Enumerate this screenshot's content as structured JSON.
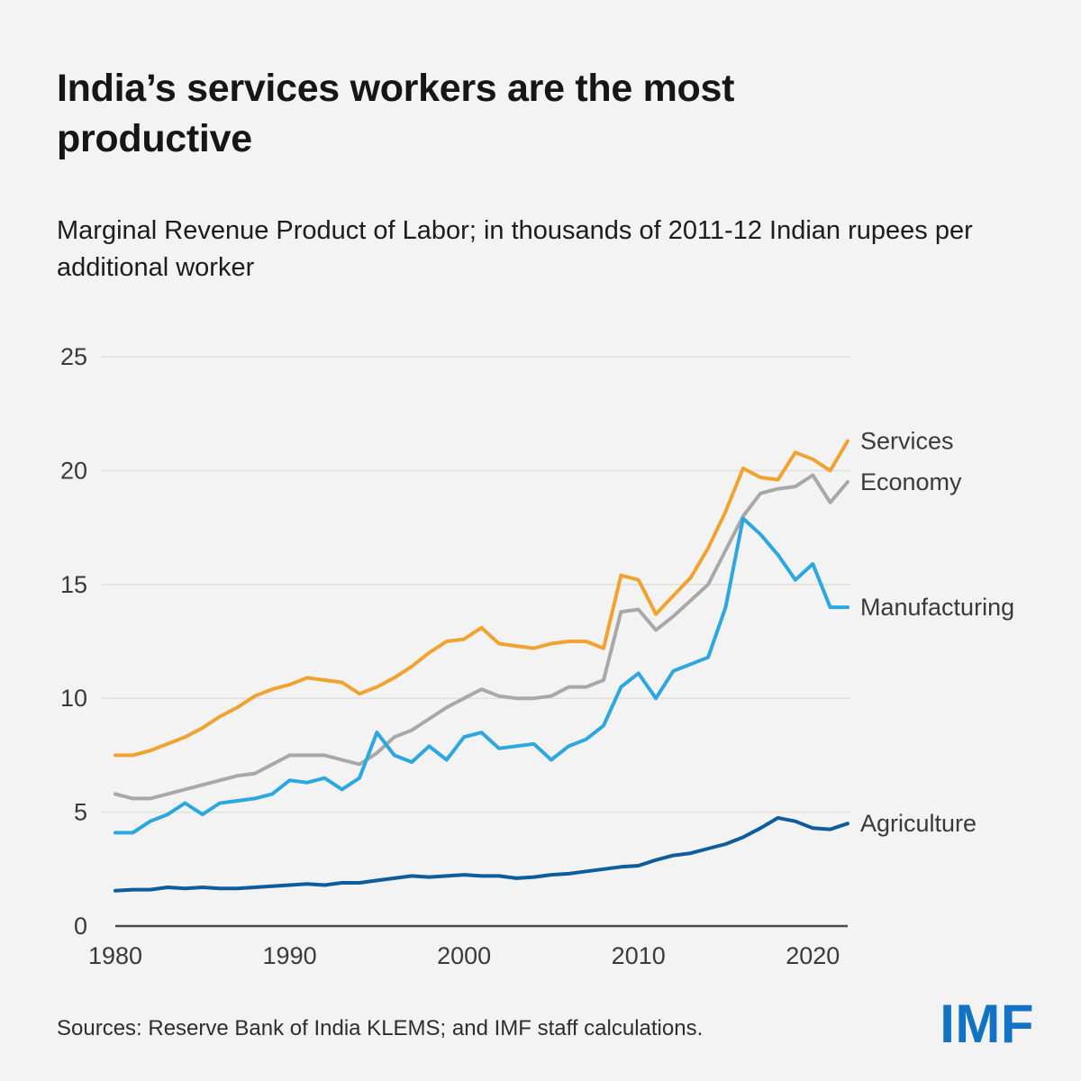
{
  "header": {
    "title": "India’s services workers are the most productive",
    "subtitle": "Marginal Revenue Product of Labor; in thousands of 2011-12 Indian rupees per additional worker"
  },
  "chart_data": {
    "type": "line",
    "title": "India’s services workers are the most productive",
    "subtitle": "Marginal Revenue Product of Labor; in thousands of 2011-12 Indian rupees per additional worker",
    "xlabel": "",
    "ylabel": "",
    "xlim": [
      1980,
      2022
    ],
    "ylim": [
      0,
      25
    ],
    "x_ticks": [
      1980,
      1990,
      2000,
      2010,
      2020
    ],
    "y_ticks": [
      0,
      5,
      10,
      15,
      20,
      25
    ],
    "grid": "horizontal",
    "legend_position": "right-of-line-ends",
    "x": [
      1980,
      1981,
      1982,
      1983,
      1984,
      1985,
      1986,
      1987,
      1988,
      1989,
      1990,
      1991,
      1992,
      1993,
      1994,
      1995,
      1996,
      1997,
      1998,
      1999,
      2000,
      2001,
      2002,
      2003,
      2004,
      2005,
      2006,
      2007,
      2008,
      2009,
      2010,
      2011,
      2012,
      2013,
      2014,
      2015,
      2016,
      2017,
      2018,
      2019,
      2020,
      2021,
      2022
    ],
    "series": [
      {
        "name": "Services",
        "color": "#F0A330",
        "values": [
          7.5,
          7.5,
          7.7,
          8.0,
          8.3,
          8.7,
          9.2,
          9.6,
          10.1,
          10.4,
          10.6,
          10.9,
          10.8,
          10.7,
          10.2,
          10.5,
          10.9,
          11.4,
          12.0,
          12.5,
          12.6,
          13.1,
          12.4,
          12.3,
          12.2,
          12.4,
          12.5,
          12.5,
          12.2,
          15.4,
          15.2,
          13.7,
          14.5,
          15.3,
          16.6,
          18.2,
          20.1,
          19.7,
          19.6,
          20.8,
          20.5,
          20.0,
          21.3
        ]
      },
      {
        "name": "Economy",
        "color": "#A8A8A8",
        "values": [
          5.8,
          5.6,
          5.6,
          5.8,
          6.0,
          6.2,
          6.4,
          6.6,
          6.7,
          7.1,
          7.5,
          7.5,
          7.5,
          7.3,
          7.1,
          7.6,
          8.3,
          8.6,
          9.1,
          9.6,
          10.0,
          10.4,
          10.1,
          10.0,
          10.0,
          10.1,
          10.5,
          10.5,
          10.8,
          13.8,
          13.9,
          13.0,
          13.6,
          14.3,
          15.0,
          16.5,
          18.0,
          19.0,
          19.2,
          19.3,
          19.8,
          18.6,
          19.5
        ]
      },
      {
        "name": "Manufacturing",
        "color": "#2CA7DF",
        "values": [
          4.1,
          4.1,
          4.6,
          4.9,
          5.4,
          4.9,
          5.4,
          5.5,
          5.6,
          5.8,
          6.4,
          6.3,
          6.5,
          6.0,
          6.5,
          8.5,
          7.5,
          7.2,
          7.9,
          7.3,
          8.3,
          8.5,
          7.8,
          7.9,
          8.0,
          7.3,
          7.9,
          8.2,
          8.8,
          10.5,
          11.1,
          10.0,
          11.2,
          11.5,
          11.8,
          14.0,
          17.9,
          17.2,
          16.3,
          15.2,
          15.9,
          14.0,
          14.0
        ]
      },
      {
        "name": "Agriculture",
        "color": "#0D5C9E",
        "values": [
          1.55,
          1.6,
          1.6,
          1.7,
          1.65,
          1.7,
          1.65,
          1.65,
          1.7,
          1.75,
          1.8,
          1.85,
          1.8,
          1.9,
          1.9,
          2.0,
          2.1,
          2.2,
          2.15,
          2.2,
          2.25,
          2.2,
          2.2,
          2.1,
          2.15,
          2.25,
          2.3,
          2.4,
          2.5,
          2.6,
          2.65,
          2.9,
          3.1,
          3.2,
          3.4,
          3.6,
          3.9,
          4.3,
          4.75,
          4.6,
          4.3,
          4.25,
          4.5
        ]
      }
    ]
  },
  "footer": {
    "source": "Sources: Reserve Bank of India KLEMS; and IMF staff calculations.",
    "logo": "IMF",
    "logo_color": "#1273C4"
  },
  "style": {
    "background": "#F2F3F2",
    "grid_color": "#E0E0DD",
    "axis_color": "#4A4A4A",
    "tick_label_color": "#3A3A3A",
    "series_label_color": "#3A3A3A"
  }
}
